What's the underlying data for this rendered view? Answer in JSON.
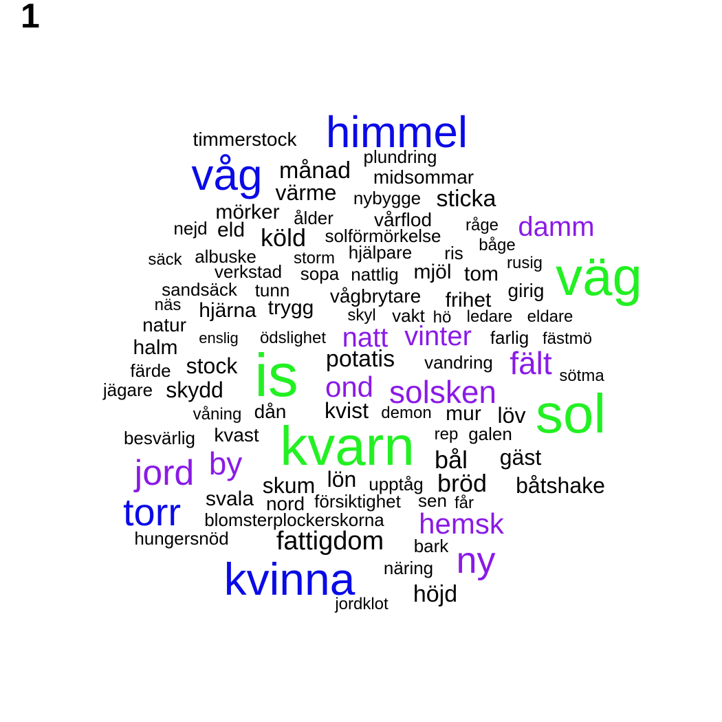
{
  "panel_label": "1",
  "colors": {
    "green": "#22f022",
    "blue": "#0a0ae6",
    "purple": "#8a1ae6",
    "black": "#000000"
  },
  "words": [
    {
      "text": "kvarn",
      "color": "green"
    },
    {
      "text": "is",
      "color": "green"
    },
    {
      "text": "sol",
      "color": "green"
    },
    {
      "text": "väg",
      "color": "green"
    },
    {
      "text": "himmel",
      "color": "blue"
    },
    {
      "text": "våg",
      "color": "blue"
    },
    {
      "text": "kvinna",
      "color": "blue"
    },
    {
      "text": "torr",
      "color": "blue"
    },
    {
      "text": "jord",
      "color": "purple"
    },
    {
      "text": "ny",
      "color": "purple"
    },
    {
      "text": "by",
      "color": "purple"
    },
    {
      "text": "solsken",
      "color": "purple"
    },
    {
      "text": "ond",
      "color": "purple"
    },
    {
      "text": "natt",
      "color": "purple"
    },
    {
      "text": "vinter",
      "color": "purple"
    },
    {
      "text": "fält",
      "color": "purple"
    },
    {
      "text": "damm",
      "color": "purple"
    },
    {
      "text": "hemsk",
      "color": "purple"
    },
    {
      "text": "fattigdom",
      "color": "black"
    },
    {
      "text": "månad",
      "color": "black"
    },
    {
      "text": "värme",
      "color": "black"
    },
    {
      "text": "sticka",
      "color": "black"
    },
    {
      "text": "köld",
      "color": "black"
    },
    {
      "text": "potatis",
      "color": "black"
    },
    {
      "text": "bröd",
      "color": "black"
    },
    {
      "text": "bål",
      "color": "black"
    },
    {
      "text": "höjd",
      "color": "black"
    },
    {
      "text": "skum",
      "color": "black"
    },
    {
      "text": "lön",
      "color": "black"
    },
    {
      "text": "kvist",
      "color": "black"
    },
    {
      "text": "stock",
      "color": "black"
    },
    {
      "text": "skydd",
      "color": "black"
    },
    {
      "text": "båtshake",
      "color": "black"
    },
    {
      "text": "gäst",
      "color": "black"
    },
    {
      "text": "löv",
      "color": "black"
    },
    {
      "text": "mur",
      "color": "black"
    },
    {
      "text": "eld",
      "color": "black"
    },
    {
      "text": "mörker",
      "color": "black"
    },
    {
      "text": "tom",
      "color": "black"
    },
    {
      "text": "mjöl",
      "color": "black"
    },
    {
      "text": "trygg",
      "color": "black"
    },
    {
      "text": "hjärna",
      "color": "black"
    },
    {
      "text": "halm",
      "color": "black"
    },
    {
      "text": "frihet",
      "color": "black"
    },
    {
      "text": "vågbrytare",
      "color": "black"
    },
    {
      "text": "svala",
      "color": "black"
    },
    {
      "text": "nord",
      "color": "black"
    },
    {
      "text": "kvast",
      "color": "black"
    },
    {
      "text": "dån",
      "color": "black"
    },
    {
      "text": "natur",
      "color": "black"
    },
    {
      "text": "vakt",
      "color": "black"
    },
    {
      "text": "vårflod",
      "color": "black"
    },
    {
      "text": "midsommar",
      "color": "black"
    },
    {
      "text": "timmerstock",
      "color": "black"
    },
    {
      "text": "plundring",
      "color": "black"
    },
    {
      "text": "nybygge",
      "color": "black"
    },
    {
      "text": "ålder",
      "color": "black"
    },
    {
      "text": "solförmörkelse",
      "color": "black"
    },
    {
      "text": "hjälpare",
      "color": "black"
    },
    {
      "text": "ris",
      "color": "black"
    },
    {
      "text": "råge",
      "color": "black"
    },
    {
      "text": "båge",
      "color": "black"
    },
    {
      "text": "rusig",
      "color": "black"
    },
    {
      "text": "girig",
      "color": "black"
    },
    {
      "text": "nejd",
      "color": "black"
    },
    {
      "text": "albuske",
      "color": "black"
    },
    {
      "text": "säck",
      "color": "black"
    },
    {
      "text": "storm",
      "color": "black"
    },
    {
      "text": "verkstad",
      "color": "black"
    },
    {
      "text": "sopa",
      "color": "black"
    },
    {
      "text": "nattlig",
      "color": "black"
    },
    {
      "text": "sandsäck",
      "color": "black"
    },
    {
      "text": "tunn",
      "color": "black"
    },
    {
      "text": "näs",
      "color": "black"
    },
    {
      "text": "skyl",
      "color": "black"
    },
    {
      "text": "hö",
      "color": "black"
    },
    {
      "text": "ledare",
      "color": "black"
    },
    {
      "text": "eldare",
      "color": "black"
    },
    {
      "text": "enslig",
      "color": "black"
    },
    {
      "text": "ödslighet",
      "color": "black"
    },
    {
      "text": "farlig",
      "color": "black"
    },
    {
      "text": "fästmö",
      "color": "black"
    },
    {
      "text": "färde",
      "color": "black"
    },
    {
      "text": "vandring",
      "color": "black"
    },
    {
      "text": "sötma",
      "color": "black"
    },
    {
      "text": "jägare",
      "color": "black"
    },
    {
      "text": "våning",
      "color": "black"
    },
    {
      "text": "demon",
      "color": "black"
    },
    {
      "text": "besvärlig",
      "color": "black"
    },
    {
      "text": "rep",
      "color": "black"
    },
    {
      "text": "galen",
      "color": "black"
    },
    {
      "text": "upptåg",
      "color": "black"
    },
    {
      "text": "sen",
      "color": "black"
    },
    {
      "text": "får",
      "color": "black"
    },
    {
      "text": "försiktighet",
      "color": "black"
    },
    {
      "text": "blomsterplockerskorna",
      "color": "black"
    },
    {
      "text": "hungersnöd",
      "color": "black"
    },
    {
      "text": "bark",
      "color": "black"
    },
    {
      "text": "näring",
      "color": "black"
    },
    {
      "text": "jordklot",
      "color": "black"
    }
  ]
}
